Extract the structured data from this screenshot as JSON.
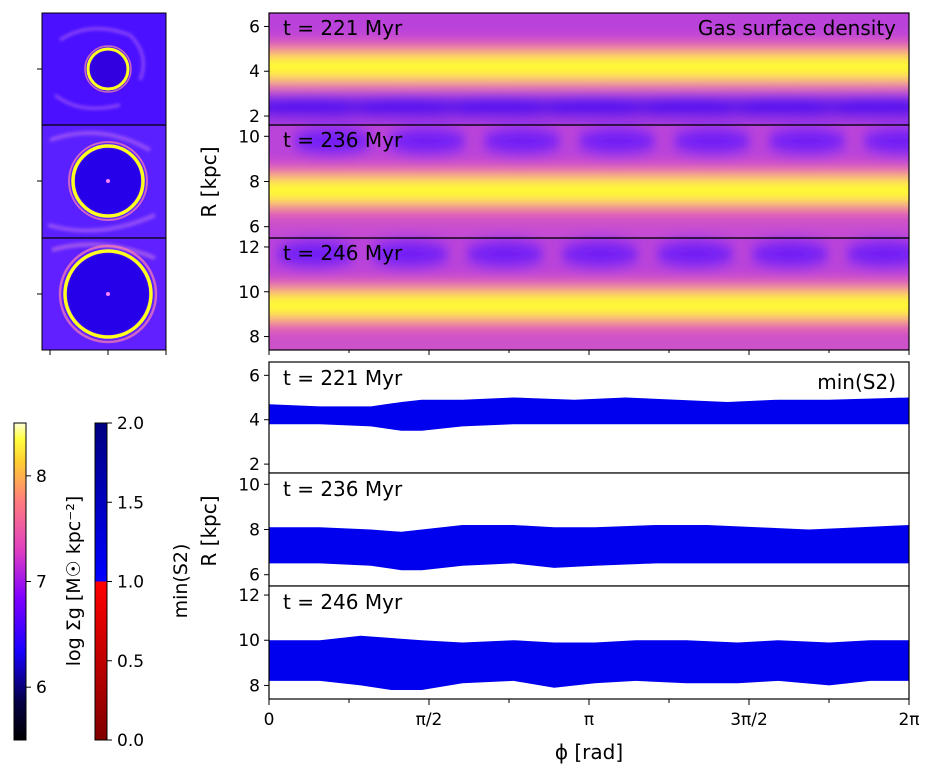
{
  "chart_data": [
    {
      "type": "heatmap",
      "title": "Gas surface density",
      "xlabel": "ϕ [rad]",
      "ylabel": "R [kpc]",
      "xlim": [
        0,
        6.2832
      ],
      "x_ticks": [
        "0",
        "π/2",
        "π",
        "3π/2",
        "2π"
      ],
      "colorbar": {
        "label": "log Σg [M☉ kpc⁻²]",
        "range": [
          5.5,
          8.5
        ],
        "ticks": [
          "6",
          "7",
          "8"
        ]
      },
      "panels": [
        {
          "time_label": "t = 221 Myr",
          "ylim": [
            1.6,
            6.6
          ],
          "y_ticks": [
            "2",
            "4",
            "6"
          ],
          "ring_center_kpc": 4.2
        },
        {
          "time_label": "t = 236 Myr",
          "ylim": [
            5.5,
            10.5
          ],
          "y_ticks": [
            "6",
            "8",
            "10"
          ],
          "ring_center_kpc": 7.6
        },
        {
          "time_label": "t = 246 Myr",
          "ylim": [
            7.4,
            12.4
          ],
          "y_ticks": [
            "8",
            "10",
            "12"
          ],
          "ring_center_kpc": 9.4
        }
      ]
    },
    {
      "type": "area",
      "title": "min(S2)",
      "xlabel": "ϕ [rad]",
      "ylabel": "R [kpc]",
      "xlim": [
        0,
        6.2832
      ],
      "x_ticks": [
        "0",
        "π/2",
        "π",
        "3π/2",
        "2π"
      ],
      "colorbar": {
        "label": "min(S2)",
        "range": [
          0.0,
          2.0
        ],
        "ticks": [
          "0.0",
          "0.5",
          "1.0",
          "1.5",
          "2.0"
        ],
        "threshold": 1.0
      },
      "panels": [
        {
          "time_label": "t = 221 Myr",
          "ylim": [
            1.6,
            6.6
          ],
          "y_ticks": [
            "2",
            "4",
            "6"
          ],
          "phi": [
            0,
            0.5,
            1.0,
            1.3,
            1.5,
            1.9,
            2.4,
            3.0,
            3.5,
            4.0,
            4.5,
            5.0,
            5.5,
            6.2832
          ],
          "band_low": [
            3.8,
            3.8,
            3.7,
            3.5,
            3.5,
            3.7,
            3.8,
            3.8,
            3.8,
            3.8,
            3.8,
            3.8,
            3.8,
            3.8
          ],
          "band_high": [
            4.7,
            4.6,
            4.6,
            4.8,
            4.9,
            4.9,
            5.0,
            4.9,
            5.0,
            4.9,
            4.8,
            4.9,
            4.9,
            5.0
          ]
        },
        {
          "time_label": "t = 236 Myr",
          "ylim": [
            5.5,
            10.5
          ],
          "y_ticks": [
            "6",
            "8",
            "10"
          ],
          "phi": [
            0,
            0.5,
            1.0,
            1.3,
            1.5,
            1.9,
            2.4,
            2.8,
            3.2,
            3.8,
            4.3,
            4.8,
            5.3,
            5.8,
            6.2832
          ],
          "band_low": [
            6.5,
            6.5,
            6.4,
            6.2,
            6.2,
            6.4,
            6.5,
            6.3,
            6.4,
            6.5,
            6.5,
            6.5,
            6.5,
            6.5,
            6.5
          ],
          "band_high": [
            8.1,
            8.1,
            8.0,
            7.9,
            8.0,
            8.2,
            8.2,
            8.1,
            8.1,
            8.2,
            8.2,
            8.1,
            8.0,
            8.1,
            8.2
          ]
        },
        {
          "time_label": "t = 246 Myr",
          "ylim": [
            7.4,
            12.4
          ],
          "y_ticks": [
            "8",
            "10",
            "12"
          ],
          "phi": [
            0,
            0.5,
            0.9,
            1.2,
            1.5,
            1.9,
            2.4,
            2.8,
            3.2,
            3.6,
            4.1,
            4.6,
            5.0,
            5.5,
            5.9,
            6.2832
          ],
          "band_low": [
            8.2,
            8.2,
            8.0,
            7.8,
            7.8,
            8.1,
            8.2,
            7.9,
            8.1,
            8.2,
            8.1,
            8.1,
            8.2,
            8.0,
            8.2,
            8.2
          ],
          "band_high": [
            10.0,
            10.0,
            10.2,
            10.1,
            10.0,
            9.9,
            10.0,
            9.9,
            9.9,
            10.0,
            10.0,
            9.9,
            10.0,
            9.9,
            10.0,
            10.0
          ]
        }
      ]
    }
  ],
  "disk_thumbnails": {
    "count": 3,
    "ring_scale": [
      0.37,
      0.67,
      0.82
    ]
  },
  "colors": {
    "band": "#0000ee",
    "ring": "#ffff00",
    "background_low": "#2a00ff",
    "frame": "#000000"
  }
}
